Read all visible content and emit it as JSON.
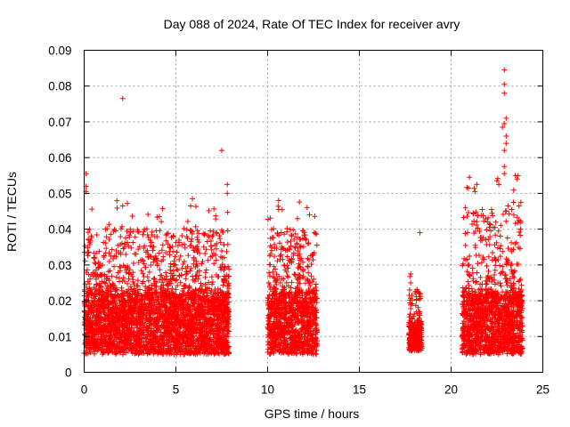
{
  "chart_data": {
    "type": "scatter",
    "title": "Day 088 of 2024, Rate Of TEC Index for receiver avry",
    "xlabel": "GPS time / hours",
    "ylabel": "ROTI / TECUs",
    "xlim": [
      0,
      25
    ],
    "ylim": [
      0,
      0.09
    ],
    "xticks": [
      0,
      5,
      10,
      15,
      20,
      25
    ],
    "xtick_labels": [
      "0",
      "5",
      "10",
      "15",
      "20",
      "25"
    ],
    "yticks": [
      0,
      0.01,
      0.02,
      0.03,
      0.04,
      0.05,
      0.06,
      0.07,
      0.08,
      0.09
    ],
    "ytick_labels": [
      "0",
      "0.01",
      "0.02",
      "0.03",
      "0.04",
      "0.05",
      "0.06",
      "0.07",
      "0.08",
      "0.09"
    ],
    "grid": true,
    "marker": "+",
    "color": "#ff0000",
    "clusters": [
      {
        "x_start": 0.0,
        "x_end": 7.9,
        "y_base_min": 0.005,
        "y_base_max": 0.022,
        "y_peak": 0.048
      },
      {
        "x_start": 10.0,
        "x_end": 12.7,
        "y_base_min": 0.005,
        "y_base_max": 0.022,
        "y_peak": 0.048
      },
      {
        "x_start": 17.7,
        "x_end": 18.4,
        "y_base_min": 0.006,
        "y_base_max": 0.014,
        "y_peak": 0.027
      },
      {
        "x_start": 20.6,
        "x_end": 23.9,
        "y_base_min": 0.005,
        "y_base_max": 0.022,
        "y_peak": 0.055
      }
    ],
    "points": [
      [
        2.1,
        0.0765
      ],
      [
        7.5,
        0.062
      ],
      [
        7.8,
        0.0525
      ],
      [
        7.8,
        0.05
      ],
      [
        0.1,
        0.0555
      ],
      [
        0.1,
        0.052
      ],
      [
        0.1,
        0.0505
      ],
      [
        4.1,
        0.0435
      ],
      [
        5.9,
        0.0485
      ],
      [
        5.8,
        0.0465
      ],
      [
        10.6,
        0.048
      ],
      [
        10.6,
        0.0455
      ],
      [
        18.3,
        0.039
      ],
      [
        18.2,
        0.0225
      ],
      [
        17.8,
        0.0275
      ],
      [
        17.8,
        0.025
      ],
      [
        22.9,
        0.0845
      ],
      [
        22.9,
        0.0805
      ],
      [
        22.9,
        0.078
      ],
      [
        23.0,
        0.071
      ],
      [
        22.9,
        0.0695
      ],
      [
        22.8,
        0.0685
      ],
      [
        23.0,
        0.066
      ],
      [
        23.0,
        0.064
      ],
      [
        22.9,
        0.062
      ],
      [
        22.9,
        0.0575
      ],
      [
        22.9,
        0.0555
      ],
      [
        21.4,
        0.0525
      ],
      [
        21.3,
        0.0505
      ],
      [
        21.0,
        0.0545
      ],
      [
        22.5,
        0.0535
      ],
      [
        22.6,
        0.0525
      ],
      [
        23.5,
        0.055
      ],
      [
        23.6,
        0.054
      ],
      [
        21.7,
        0.0455
      ],
      [
        22.2,
        0.0455
      ],
      [
        23.1,
        0.0465
      ],
      [
        23.4,
        0.0475
      ],
      [
        23.7,
        0.0465
      ],
      [
        23.8,
        0.0475
      ],
      [
        21.2,
        0.0445
      ],
      [
        22.1,
        0.0415
      ],
      [
        22.3,
        0.0405
      ]
    ]
  }
}
